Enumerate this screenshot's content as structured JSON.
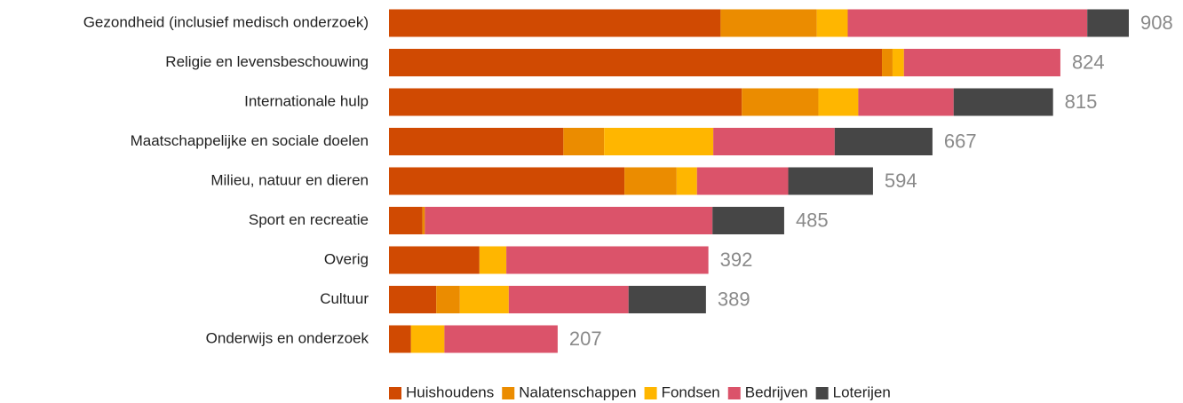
{
  "chart_data": {
    "type": "stacked-bar-horizontal",
    "categories": [
      "Gezondheid (inclusief medisch onderzoek)",
      "Religie en levensbeschouwing",
      "Internationale hulp",
      "Maatschappelijke en sociale doelen",
      "Milieu, natuur en dieren",
      "Sport en recreatie",
      "Overig",
      "Cultuur",
      "Onderwijs en onderzoek"
    ],
    "series": [
      {
        "name": "Huishoudens",
        "color": "#d04a02",
        "values": [
          407,
          605,
          433,
          214,
          289,
          41,
          111,
          58,
          27
        ]
      },
      {
        "name": "Nalatenschappen",
        "color": "#eb8c00",
        "values": [
          118,
          13,
          94,
          50,
          64,
          3,
          0,
          29,
          0
        ]
      },
      {
        "name": "Fondsen",
        "color": "#ffb600",
        "values": [
          38,
          14,
          49,
          134,
          25,
          0,
          33,
          60,
          41
        ]
      },
      {
        "name": "Bedrijven",
        "color": "#db536a",
        "values": [
          294,
          192,
          117,
          149,
          112,
          353,
          248,
          147,
          139
        ]
      },
      {
        "name": "Loterijen",
        "color": "#464646",
        "values": [
          51,
          0,
          122,
          120,
          104,
          88,
          0,
          95,
          0
        ]
      }
    ],
    "totals": [
      908,
      824,
      815,
      667,
      594,
      485,
      392,
      389,
      207
    ],
    "xlim": [
      0,
      908
    ],
    "legend": "bottom"
  }
}
